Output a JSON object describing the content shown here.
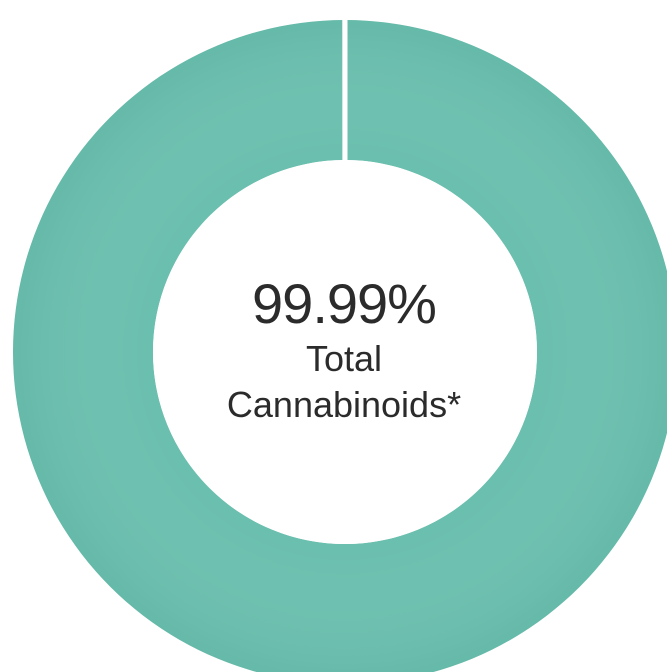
{
  "chart_data": {
    "type": "pie",
    "variant": "donut",
    "slices": [
      {
        "name": "",
        "value": 99.99,
        "color": "#6bbfae"
      },
      {
        "name": "",
        "value": 0.01,
        "color": "#ffffff"
      }
    ],
    "center_text": {
      "value": "99.99%",
      "caption_line1": "Total",
      "caption_line2": "Cannabinoids*"
    },
    "start_angle": "top",
    "legend": "none"
  }
}
